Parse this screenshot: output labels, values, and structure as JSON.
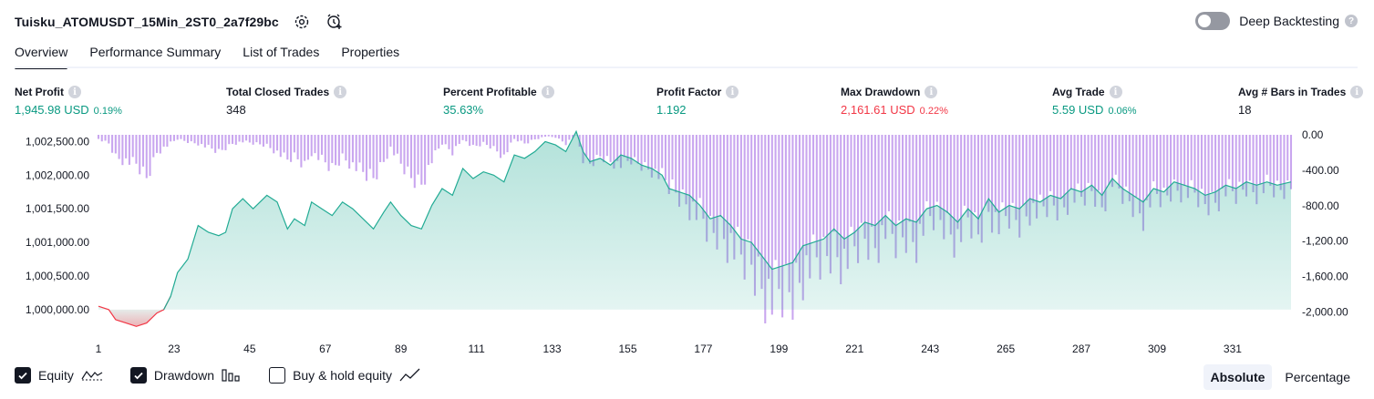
{
  "header": {
    "title": "Tuisku_ATOMUSDT_15Min_2ST0_2a7f29bc",
    "deep_backtesting_label": "Deep Backtesting"
  },
  "tabs": [
    {
      "label": "Overview",
      "active": true
    },
    {
      "label": "Performance Summary",
      "active": false
    },
    {
      "label": "List of Trades",
      "active": false
    },
    {
      "label": "Properties",
      "active": false
    }
  ],
  "metrics": {
    "net_profit": {
      "label": "Net Profit",
      "value": "1,945.98 USD",
      "pct": "0.19%"
    },
    "total_closed_trades": {
      "label": "Total Closed Trades",
      "value": "348"
    },
    "percent_profitable": {
      "label": "Percent Profitable",
      "value": "35.63%"
    },
    "profit_factor": {
      "label": "Profit Factor",
      "value": "1.192"
    },
    "max_drawdown": {
      "label": "Max Drawdown",
      "value": "2,161.61 USD",
      "pct": "0.22%"
    },
    "avg_trade": {
      "label": "Avg Trade",
      "value": "5.59 USD",
      "pct": "0.06%"
    },
    "avg_bars": {
      "label": "Avg # Bars in Trades",
      "value": "18"
    }
  },
  "colors": {
    "positive": "#089981",
    "negative": "#f23645",
    "equity_line": "#22ab94",
    "drawdown_bar": "#c9a6ef"
  },
  "legend": {
    "equity": {
      "label": "Equity",
      "checked": true
    },
    "drawdown": {
      "label": "Drawdown",
      "checked": true
    },
    "buy_hold": {
      "label": "Buy & hold equity",
      "checked": false
    }
  },
  "mode": {
    "absolute": "Absolute",
    "percentage": "Percentage",
    "selected": "Absolute"
  },
  "chart_data": {
    "type": "area",
    "x_ticks": [
      1,
      23,
      45,
      67,
      89,
      111,
      133,
      155,
      177,
      199,
      221,
      243,
      265,
      287,
      309,
      331
    ],
    "x_tick_labels": [
      "1",
      "23",
      "45",
      "67",
      "89",
      "111",
      "133",
      "155",
      "177",
      "199",
      "221",
      "243",
      "265",
      "287",
      "309",
      "331"
    ],
    "xlim": [
      1,
      348
    ],
    "left_axis": {
      "ticks": [
        1000000,
        1000500,
        1001000,
        1001500,
        1002000,
        1002500
      ],
      "tick_labels": [
        "1,000,000.00",
        "1,000,500.00",
        "1,001,000.00",
        "1,001,500.00",
        "1,002,000.00",
        "1,002,500.00"
      ],
      "ylim": [
        999700,
        1002600
      ]
    },
    "right_axis": {
      "ticks": [
        0,
        -400,
        -800,
        -1200,
        -1600,
        -2000
      ],
      "tick_labels": [
        "0.00",
        "-400.00",
        "-800.00",
        "-1,200.00",
        "-1,600.00",
        "-2,000.00"
      ],
      "ylim": [
        -2200,
        0
      ]
    },
    "equity": {
      "x": [
        1,
        4,
        6,
        9,
        12,
        15,
        18,
        20,
        22,
        24,
        27,
        30,
        33,
        36,
        38,
        40,
        43,
        46,
        50,
        53,
        56,
        58,
        61,
        63,
        66,
        69,
        72,
        75,
        78,
        81,
        84,
        86,
        89,
        92,
        95,
        98,
        101,
        104,
        107,
        110,
        113,
        116,
        119,
        122,
        125,
        128,
        131,
        134,
        137,
        140,
        142,
        144,
        147,
        150,
        153,
        156,
        159,
        162,
        165,
        167,
        170,
        173,
        176,
        179,
        182,
        185,
        188,
        191,
        194,
        197,
        200,
        203,
        206,
        209,
        212,
        215,
        218,
        221,
        224,
        227,
        230,
        233,
        236,
        239,
        242,
        245,
        248,
        251,
        254,
        257,
        260,
        263,
        266,
        269,
        272,
        275,
        278,
        281,
        284,
        287,
        290,
        293,
        296,
        299,
        302,
        305,
        308,
        311,
        314,
        317,
        320,
        323,
        326,
        329,
        332,
        335,
        338,
        341,
        344,
        348
      ],
      "y": [
        1000050,
        1000000,
        999850,
        999800,
        999750,
        999800,
        999950,
        1000000,
        1000200,
        1000550,
        1000750,
        1001250,
        1001150,
        1001100,
        1001150,
        1001500,
        1001650,
        1001500,
        1001700,
        1001600,
        1001200,
        1001350,
        1001250,
        1001600,
        1001500,
        1001400,
        1001600,
        1001500,
        1001350,
        1001200,
        1001450,
        1001600,
        1001400,
        1001250,
        1001200,
        1001550,
        1001800,
        1001700,
        1002100,
        1001950,
        1002050,
        1002000,
        1001900,
        1002300,
        1002250,
        1002350,
        1002500,
        1002450,
        1002350,
        1002650,
        1002350,
        1002200,
        1002250,
        1002150,
        1002300,
        1002250,
        1002150,
        1002100,
        1002000,
        1001800,
        1001750,
        1001700,
        1001550,
        1001350,
        1001400,
        1001250,
        1001050,
        1001000,
        1000800,
        1000600,
        1000650,
        1000700,
        1000950,
        1001000,
        1001050,
        1001200,
        1001050,
        1001150,
        1001300,
        1001250,
        1001400,
        1001250,
        1001350,
        1001300,
        1001500,
        1001550,
        1001450,
        1001300,
        1001500,
        1001350,
        1001650,
        1001450,
        1001550,
        1001500,
        1001650,
        1001600,
        1001700,
        1001650,
        1001800,
        1001750,
        1001850,
        1001700,
        1001950,
        1001800,
        1001700,
        1001600,
        1001800,
        1001750,
        1001900,
        1001850,
        1001800,
        1001700,
        1001750,
        1001850,
        1001800,
        1001900,
        1001850,
        1001900,
        1001850,
        1001900
      ]
    },
    "drawdown": {
      "x": [
        1,
        4,
        6,
        9,
        12,
        15,
        18,
        20,
        22,
        24,
        27,
        30,
        33,
        36,
        38,
        40,
        43,
        46,
        50,
        53,
        56,
        58,
        61,
        63,
        66,
        69,
        72,
        75,
        78,
        81,
        84,
        86,
        89,
        92,
        95,
        98,
        101,
        104,
        107,
        110,
        113,
        116,
        119,
        122,
        125,
        128,
        131,
        134,
        137,
        140,
        142,
        144,
        147,
        150,
        153,
        156,
        159,
        162,
        165,
        167,
        170,
        173,
        176,
        179,
        182,
        185,
        188,
        191,
        194,
        197,
        200,
        203,
        206,
        209,
        212,
        215,
        218,
        221,
        224,
        227,
        230,
        233,
        236,
        239,
        242,
        245,
        248,
        251,
        254,
        257,
        260,
        263,
        266,
        269,
        272,
        275,
        278,
        281,
        284,
        287,
        290,
        293,
        296,
        299,
        302,
        305,
        308,
        311,
        314,
        317,
        320,
        323,
        326,
        329,
        332,
        335,
        338,
        341,
        344,
        348
      ],
      "y": [
        -50,
        -100,
        -250,
        -300,
        -350,
        -500,
        -200,
        -150,
        -100,
        -50,
        -80,
        -100,
        -150,
        -200,
        -150,
        -100,
        -80,
        -100,
        -120,
        -200,
        -300,
        -250,
        -350,
        -200,
        -300,
        -400,
        -250,
        -350,
        -450,
        -500,
        -300,
        -150,
        -350,
        -500,
        -550,
        -300,
        -100,
        -200,
        -50,
        -150,
        -100,
        -150,
        -250,
        -50,
        -100,
        -50,
        -20,
        -30,
        -100,
        0,
        -300,
        -350,
        -250,
        -300,
        -350,
        -300,
        -350,
        -400,
        -500,
        -600,
        -700,
        -800,
        -950,
        -1150,
        -1100,
        -1250,
        -1450,
        -1500,
        -1700,
        -1900,
        -1850,
        -1800,
        -1550,
        -1500,
        -1450,
        -1300,
        -1450,
        -1350,
        -1200,
        -1250,
        -1100,
        -1250,
        -1150,
        -1200,
        -1000,
        -950,
        -1050,
        -1200,
        -1000,
        -1150,
        -850,
        -1050,
        -950,
        -1000,
        -850,
        -900,
        -800,
        -850,
        -700,
        -750,
        -650,
        -800,
        -550,
        -700,
        -800,
        -900,
        -700,
        -750,
        -600,
        -650,
        -700,
        -800,
        -750,
        -650,
        -700,
        -600,
        -650,
        -600,
        -650,
        -600
      ]
    }
  }
}
